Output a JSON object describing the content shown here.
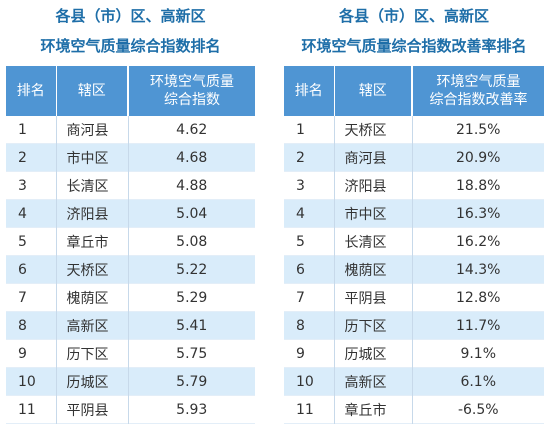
{
  "left": {
    "title_line1": "各县（市）区、高新区",
    "title_line2": "环境空气质量综合指数排名",
    "headers": {
      "rank": "排名",
      "district": "辖区",
      "value_line1": "环境空气质量",
      "value_line2": "综合指数"
    },
    "rows": [
      {
        "rank": "1",
        "district": "商河县",
        "value": "4.62"
      },
      {
        "rank": "2",
        "district": "市中区",
        "value": "4.68"
      },
      {
        "rank": "3",
        "district": "长清区",
        "value": "4.88"
      },
      {
        "rank": "4",
        "district": "济阳县",
        "value": "5.04"
      },
      {
        "rank": "5",
        "district": "章丘市",
        "value": "5.08"
      },
      {
        "rank": "6",
        "district": "天桥区",
        "value": "5.22"
      },
      {
        "rank": "7",
        "district": "槐荫区",
        "value": "5.29"
      },
      {
        "rank": "8",
        "district": "高新区",
        "value": "5.41"
      },
      {
        "rank": "9",
        "district": "历下区",
        "value": "5.75"
      },
      {
        "rank": "10",
        "district": "历城区",
        "value": "5.79"
      },
      {
        "rank": "11",
        "district": "平阴县",
        "value": "5.93"
      }
    ]
  },
  "right": {
    "title_line1": "各县（市）区、高新区",
    "title_line2": "环境空气质量综合指数改善率排名",
    "headers": {
      "rank": "排名",
      "district": "辖区",
      "value_line1": "环境空气质量",
      "value_line2": "综合指数改善率"
    },
    "rows": [
      {
        "rank": "1",
        "district": "天桥区",
        "value": "21.5%"
      },
      {
        "rank": "2",
        "district": "商河县",
        "value": "20.9%"
      },
      {
        "rank": "3",
        "district": "济阳县",
        "value": "18.8%"
      },
      {
        "rank": "4",
        "district": "市中区",
        "value": "16.3%"
      },
      {
        "rank": "5",
        "district": "长清区",
        "value": "16.2%"
      },
      {
        "rank": "6",
        "district": "槐荫区",
        "value": "14.3%"
      },
      {
        "rank": "7",
        "district": "平阴县",
        "value": "12.8%"
      },
      {
        "rank": "8",
        "district": "历下区",
        "value": "11.7%"
      },
      {
        "rank": "9",
        "district": "历城区",
        "value": "9.1%"
      },
      {
        "rank": "10",
        "district": "高新区",
        "value": "6.1%"
      },
      {
        "rank": "11",
        "district": "章丘市",
        "value": "-6.5%"
      }
    ]
  },
  "colors": {
    "title": "#1e6ea8",
    "header_bg": "#4f95d3",
    "stripe": "#d9ecfa"
  }
}
